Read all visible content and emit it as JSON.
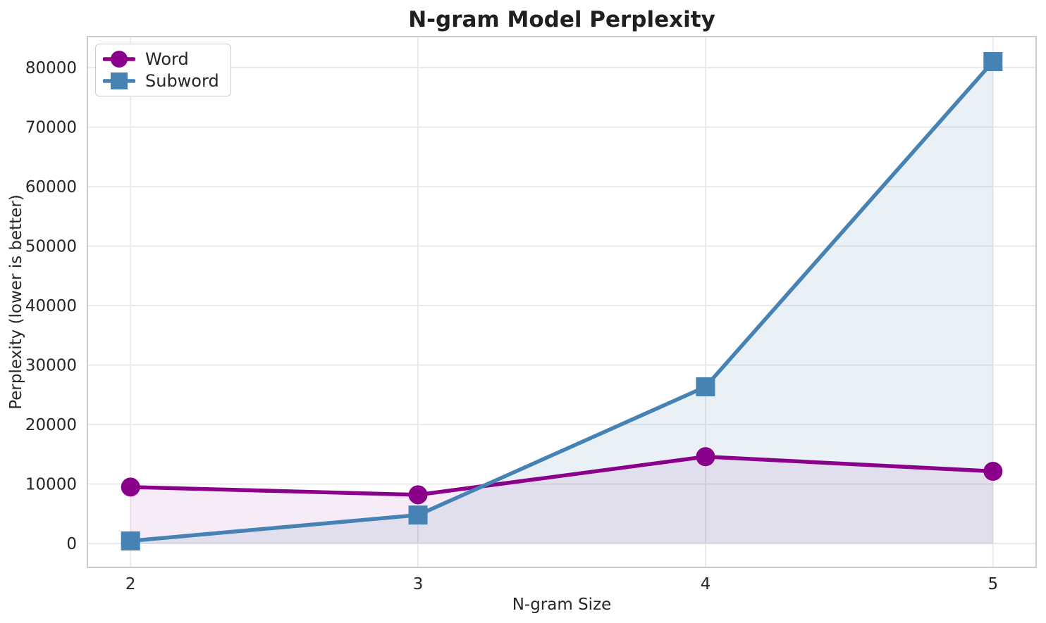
{
  "chart_data": {
    "type": "line",
    "title": "N-gram Model Perplexity",
    "xlabel": "N-gram Size",
    "ylabel": "Perplexity (lower is better)",
    "x": [
      2,
      3,
      4,
      5
    ],
    "series": [
      {
        "name": "Word",
        "values": [
          9500,
          8200,
          14600,
          12150
        ],
        "color": "#8B008B",
        "marker": "circle",
        "fill_to_zero": true,
        "fill_opacity": 0.08
      },
      {
        "name": "Subword",
        "values": [
          450,
          4800,
          26350,
          81000
        ],
        "color": "#4682B4",
        "marker": "square",
        "fill_to_zero": true,
        "fill_opacity": 0.12
      }
    ],
    "xticks": [
      2,
      3,
      4,
      5
    ],
    "yticks": [
      0,
      10000,
      20000,
      30000,
      40000,
      50000,
      60000,
      70000,
      80000
    ],
    "xlim": [
      1.85,
      5.15
    ],
    "ylim": [
      -4000,
      85200
    ],
    "grid": true,
    "legend_position": "upper-left"
  },
  "style": {
    "grid_color": "#e9e9e9",
    "spine_color": "#cbcbcb",
    "text_color": "#262626",
    "background": "#ffffff",
    "line_width": 5.5,
    "marker_size": 27
  }
}
